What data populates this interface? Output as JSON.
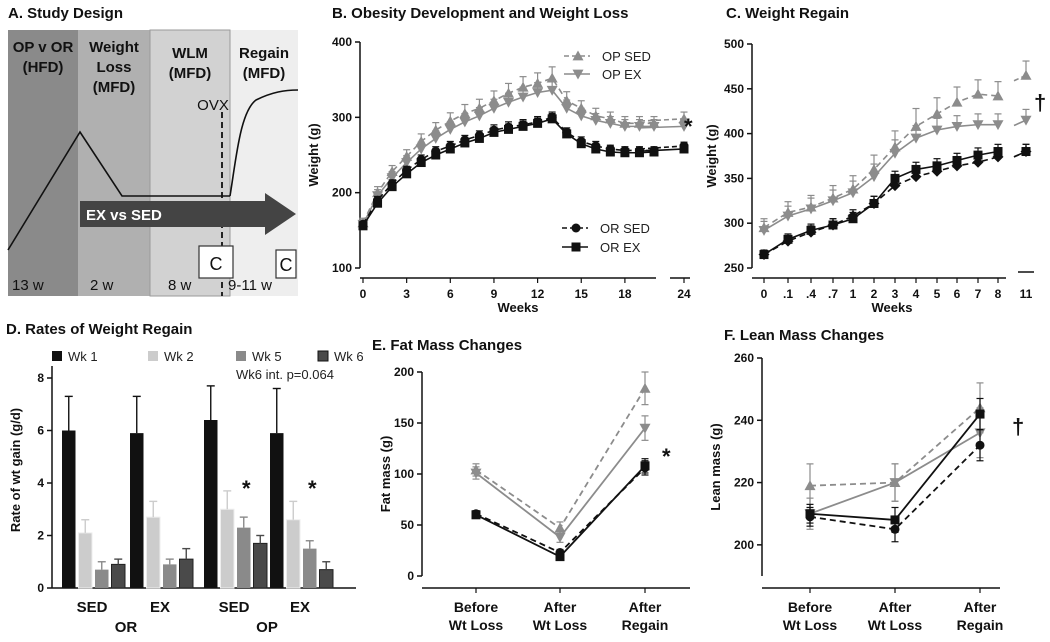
{
  "study_design": {
    "title": "A. Study Design",
    "phases": [
      {
        "line1": "OP v OR",
        "line2": "(HFD)",
        "duration": "13 w"
      },
      {
        "line1": "Weight",
        "line2": "Loss",
        "line3": "(MFD)",
        "duration": "2 w"
      },
      {
        "line1": "WLM",
        "line2": "(MFD)",
        "duration": "8 w"
      },
      {
        "line1": "Regain",
        "line2": "(MFD)",
        "duration": "9-11 w"
      }
    ],
    "ovx": "OVX",
    "arrow": "EX vs SED",
    "c_label": "C",
    "colors": {
      "p1": "#8a8a8a",
      "p2": "#b0b0b0",
      "p3": "#d2d2d2",
      "p4": "#eeeeee",
      "arrow": "#444444"
    }
  },
  "chart_data": [
    {
      "id": "B",
      "type": "line",
      "title": "B.  Obesity Development and Weight Loss",
      "xlabel": "Weeks",
      "ylabel": "Weight (g)",
      "ylim": [
        100,
        400
      ],
      "yticks": [
        100,
        200,
        300,
        400
      ],
      "xticks": [
        "0",
        "3",
        "6",
        "9",
        "12",
        "15",
        "18",
        "24"
      ],
      "xtick_values": [
        0,
        3,
        6,
        9,
        12,
        15,
        18,
        24
      ],
      "x": [
        0,
        1,
        2,
        3,
        4,
        5,
        6,
        7,
        8,
        9,
        10,
        11,
        12,
        13,
        14,
        15,
        16,
        17,
        18,
        19,
        20
      ],
      "series": [
        {
          "name": "OP SED",
          "color": "#8c8c8c",
          "dash": true,
          "marker": "tri-up",
          "values": [
            160,
            200,
            228,
            248,
            268,
            283,
            295,
            305,
            312,
            322,
            332,
            340,
            345,
            352,
            322,
            312,
            302,
            298,
            292,
            292,
            292
          ],
          "err": [
            6,
            8,
            8,
            9,
            10,
            10,
            11,
            12,
            12,
            13,
            13,
            14,
            14,
            15,
            12,
            10,
            10,
            9,
            9,
            9,
            9
          ],
          "late": {
            "x": [
              22.5,
              24
            ],
            "values": [
              295,
              298
            ]
          }
        },
        {
          "name": "OP EX",
          "color": "#8c8c8c",
          "dash": false,
          "marker": "tri-down",
          "values": [
            158,
            196,
            220,
            240,
            258,
            272,
            284,
            294,
            302,
            312,
            320,
            327,
            333,
            336,
            312,
            302,
            296,
            292,
            288,
            288,
            288
          ],
          "err": [
            6,
            8,
            8,
            9,
            9,
            10,
            10,
            11,
            11,
            12,
            12,
            13,
            13,
            14,
            11,
            10,
            9,
            9,
            9,
            9,
            9
          ],
          "late": {
            "x": [
              22.5,
              24
            ],
            "values": [
              286,
              288
            ]
          }
        },
        {
          "name": "OR SED",
          "color": "#111111",
          "dash": true,
          "marker": "circle",
          "values": [
            158,
            190,
            212,
            230,
            244,
            255,
            262,
            270,
            276,
            283,
            287,
            290,
            294,
            300,
            280,
            268,
            262,
            258,
            256,
            256,
            256
          ],
          "err": [
            4,
            5,
            5,
            5,
            6,
            6,
            6,
            6,
            6,
            7,
            7,
            7,
            7,
            7,
            6,
            6,
            6,
            5,
            5,
            5,
            5
          ],
          "late": {
            "x": [
              22.5,
              24
            ],
            "values": [
              258,
              262
            ]
          }
        },
        {
          "name": "OR EX",
          "color": "#111111",
          "dash": false,
          "marker": "square",
          "values": [
            156,
            186,
            208,
            225,
            240,
            250,
            258,
            266,
            272,
            280,
            284,
            288,
            292,
            298,
            278,
            265,
            258,
            254,
            253,
            253,
            254
          ],
          "err": [
            4,
            5,
            5,
            5,
            6,
            6,
            6,
            6,
            6,
            7,
            7,
            7,
            7,
            7,
            6,
            6,
            6,
            5,
            5,
            5,
            5
          ],
          "late": {
            "x": [
              22.5,
              24
            ],
            "values": [
              255,
              258
            ]
          }
        }
      ],
      "annotation": "*"
    },
    {
      "id": "C",
      "type": "line",
      "title": "C.  Weight Regain",
      "xlabel": "Weeks",
      "ylabel": "Weight (g)",
      "ylim": [
        250,
        500
      ],
      "yticks": [
        250,
        300,
        350,
        400,
        450,
        500
      ],
      "xticks": [
        "0",
        ".1",
        ".4",
        ".7",
        "1",
        "2",
        "3",
        "4",
        "5",
        "6",
        "7",
        "8",
        "11"
      ],
      "series": [
        {
          "name": "OP SED",
          "color": "#8c8c8c",
          "dash": true,
          "marker": "tri-up",
          "values": [
            295,
            312,
            318,
            328,
            338,
            360,
            385,
            408,
            422,
            435,
            444,
            442,
            465
          ],
          "err": [
            10,
            12,
            13,
            14,
            15,
            16,
            18,
            20,
            18,
            17,
            16,
            16,
            16
          ]
        },
        {
          "name": "OP EX",
          "color": "#8c8c8c",
          "dash": false,
          "marker": "tri-down",
          "values": [
            292,
            308,
            316,
            325,
            334,
            352,
            378,
            395,
            404,
            408,
            410,
            410,
            415
          ],
          "err": [
            10,
            11,
            12,
            12,
            13,
            14,
            15,
            14,
            13,
            12,
            12,
            12,
            12
          ]
        },
        {
          "name": "OR SED",
          "color": "#111111",
          "dash": true,
          "marker": "diamond",
          "values": [
            265,
            280,
            290,
            298,
            308,
            322,
            342,
            352,
            358,
            364,
            368,
            374,
            380
          ],
          "err": [
            5,
            6,
            7,
            7,
            7,
            8,
            8,
            8,
            8,
            8,
            8,
            8,
            8
          ]
        },
        {
          "name": "OR EX",
          "color": "#111111",
          "dash": false,
          "marker": "square",
          "values": [
            265,
            282,
            292,
            298,
            305,
            322,
            350,
            360,
            364,
            370,
            376,
            380,
            380
          ],
          "err": [
            5,
            6,
            7,
            7,
            7,
            8,
            8,
            8,
            8,
            8,
            8,
            8,
            8
          ]
        }
      ],
      "annotation": "†"
    },
    {
      "id": "D",
      "type": "bar",
      "title": "D.  Rates of Weight Regain",
      "ylabel": "Rate of wt gain (g/d)",
      "ylim": [
        0,
        8
      ],
      "yticks": [
        0,
        2,
        4,
        6,
        8
      ],
      "categories": [
        "SED",
        "EX",
        "SED",
        "EX"
      ],
      "group_labels": [
        {
          "label": "OR",
          "covers": [
            0,
            1
          ]
        },
        {
          "label": "OP",
          "covers": [
            2,
            3
          ]
        }
      ],
      "series": [
        {
          "name": "Wk 1",
          "color": "#111111",
          "values": [
            6.0,
            5.9,
            6.4,
            5.9
          ],
          "err": [
            1.3,
            1.4,
            1.3,
            1.7
          ]
        },
        {
          "name": "Wk 2",
          "color": "#cccccc",
          "values": [
            2.1,
            2.7,
            3.0,
            2.6
          ],
          "err": [
            0.5,
            0.6,
            0.7,
            0.7
          ]
        },
        {
          "name": "Wk 5",
          "color": "#8a8a8a",
          "values": [
            0.7,
            0.9,
            2.3,
            1.5
          ],
          "err": [
            0.3,
            0.2,
            0.4,
            0.3
          ]
        },
        {
          "name": "Wk 6",
          "color": "#4a4a4a",
          "values": [
            0.9,
            1.1,
            1.7,
            0.7
          ],
          "err": [
            0.2,
            0.4,
            0.3,
            0.3
          ]
        }
      ],
      "note": "Wk6 int. p=0.064",
      "annotations": [
        {
          "text": "*",
          "category": 2
        },
        {
          "text": "*",
          "category": 3
        }
      ]
    },
    {
      "id": "E",
      "type": "line",
      "title": "E.  Fat Mass Changes",
      "ylabel": "Fat mass (g)",
      "ylim": [
        0,
        200
      ],
      "yticks": [
        0,
        50,
        100,
        150,
        200
      ],
      "categories": [
        [
          "Before",
          "Wt Loss"
        ],
        [
          "After",
          "Wt Loss"
        ],
        [
          "After",
          "Regain"
        ]
      ],
      "series": [
        {
          "name": "OP SED",
          "color": "#8c8c8c",
          "dash": true,
          "marker": "tri-up",
          "values": [
            104,
            47,
            184
          ],
          "err": [
            6,
            6,
            16
          ]
        },
        {
          "name": "OP EX",
          "color": "#8c8c8c",
          "dash": false,
          "marker": "tri-down",
          "values": [
            101,
            38,
            145
          ],
          "err": [
            6,
            5,
            12
          ]
        },
        {
          "name": "OR SED",
          "color": "#111111",
          "dash": true,
          "marker": "circle",
          "values": [
            61,
            23,
            106
          ],
          "err": [
            3,
            3,
            7
          ]
        },
        {
          "name": "OR EX",
          "color": "#111111",
          "dash": false,
          "marker": "square",
          "values": [
            60,
            19,
            108
          ],
          "err": [
            3,
            3,
            7
          ]
        }
      ],
      "annotation": "*"
    },
    {
      "id": "F",
      "type": "line",
      "title": "F.  Lean Mass Changes",
      "ylabel": "Lean mass (g)",
      "ylim": [
        190,
        260
      ],
      "yticks": [
        200,
        220,
        240,
        260
      ],
      "categories": [
        [
          "Before",
          "Wt Loss"
        ],
        [
          "After",
          "Wt Loss"
        ],
        [
          "After",
          "Regain"
        ]
      ],
      "series": [
        {
          "name": "OP SED",
          "color": "#8c8c8c",
          "dash": true,
          "marker": "tri-up",
          "values": [
            219,
            220,
            244
          ],
          "err": [
            7,
            6,
            8
          ]
        },
        {
          "name": "OP EX",
          "color": "#8c8c8c",
          "dash": false,
          "marker": "tri-down",
          "values": [
            210,
            220,
            236
          ],
          "err": [
            5,
            6,
            8
          ]
        },
        {
          "name": "OR SED",
          "color": "#111111",
          "dash": true,
          "marker": "circle",
          "values": [
            209,
            205,
            232
          ],
          "err": [
            3,
            4,
            5
          ]
        },
        {
          "name": "OR EX",
          "color": "#111111",
          "dash": false,
          "marker": "square",
          "values": [
            210,
            208,
            242
          ],
          "err": [
            3,
            4,
            5
          ]
        }
      ],
      "annotation": "†"
    }
  ]
}
